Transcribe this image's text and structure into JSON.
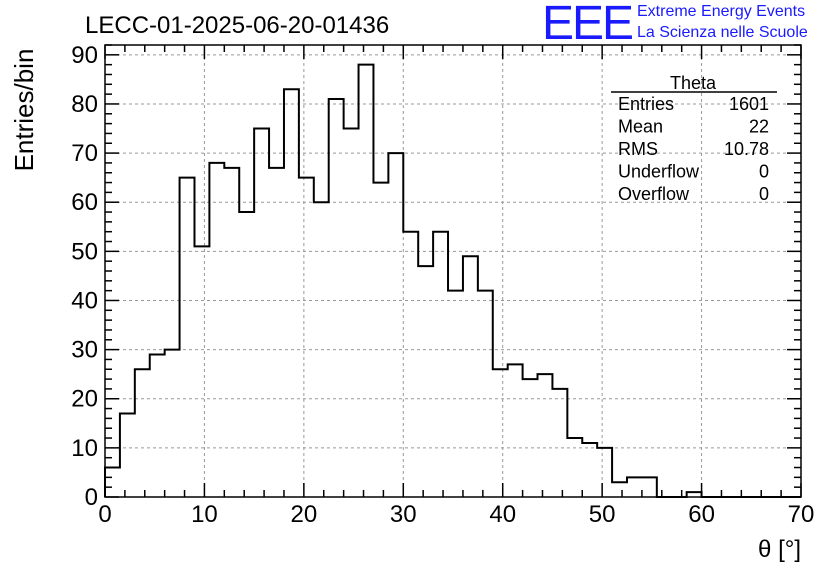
{
  "chart_data": {
    "type": "bar",
    "title": "LECC-01-2025-06-20-01436",
    "xlabel": "θ [°]",
    "ylabel": "Entries/bin",
    "xlim": [
      0,
      70
    ],
    "ylim": [
      0,
      92
    ],
    "grid": true,
    "x_ticks": [
      "0",
      "10",
      "20",
      "30",
      "40",
      "50",
      "60",
      "70"
    ],
    "y_ticks": [
      "0",
      "10",
      "20",
      "30",
      "40",
      "50",
      "60",
      "70",
      "80",
      "90"
    ],
    "bin_width": 1.5,
    "bin_start": 0,
    "values": [
      6,
      17,
      26,
      29,
      30,
      65,
      51,
      68,
      67,
      58,
      75,
      67,
      83,
      65,
      60,
      81,
      75,
      88,
      64,
      70,
      54,
      47,
      54,
      42,
      49,
      42,
      26,
      27,
      24,
      25,
      22,
      12,
      11,
      10,
      3,
      4,
      4,
      0,
      0,
      1,
      0,
      0,
      0,
      0,
      0,
      0,
      0
    ],
    "legend_position": "top-right",
    "stats": {
      "title": "Theta",
      "rows": [
        {
          "label": "Entries",
          "value": "1601"
        },
        {
          "label": "Mean",
          "value": "22"
        },
        {
          "label": "RMS",
          "value": "10.78"
        },
        {
          "label": "Underflow",
          "value": "0"
        },
        {
          "label": "Overflow",
          "value": "0"
        }
      ]
    }
  },
  "logo": {
    "mark": "EEE",
    "line1": "Extreme Energy Events",
    "line2": "La Scienza nelle Scuole",
    "color": "#1a1aff"
  }
}
